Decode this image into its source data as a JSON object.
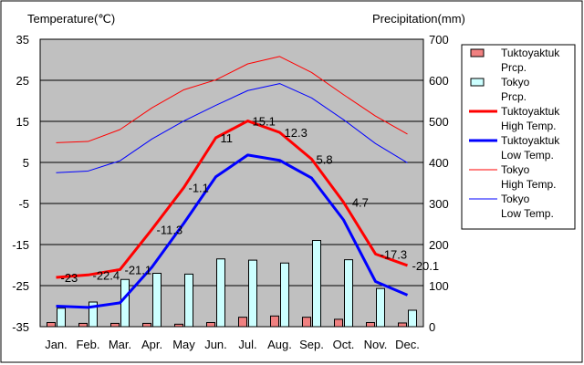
{
  "chart_data": {
    "type": "bar+line",
    "left_axis_label": "Temperature(℃)",
    "right_axis_label": "Precipitation(mm)",
    "categories": [
      "Jan.",
      "Feb.",
      "Mar.",
      "Apr.",
      "May",
      "Jun.",
      "Jul.",
      "Aug.",
      "Sep.",
      "Oct.",
      "Nov.",
      "Dec."
    ],
    "left_axis": {
      "min": -35,
      "max": 35,
      "ticks": [
        35,
        25,
        15,
        5,
        -5,
        -15,
        -25,
        -35
      ]
    },
    "right_axis": {
      "min": 0,
      "max": 700,
      "ticks": [
        700,
        600,
        500,
        400,
        300,
        200,
        100,
        0
      ]
    },
    "grid": "horizontal",
    "legend_position": "right",
    "bar_series": [
      {
        "name": "Tuktoyaktuk Prcp.",
        "legend_lines": [
          "Tuktoyaktuk",
          "Prcp."
        ],
        "color": "#f08080",
        "values": [
          10,
          8,
          8,
          8,
          6,
          10,
          23,
          26,
          23,
          18,
          10,
          9
        ]
      },
      {
        "name": "Tokyo Prcp.",
        "legend_lines": [
          "Tokyo",
          "Prcp."
        ],
        "color": "#ccffff",
        "values": [
          45,
          60,
          115,
          130,
          128,
          165,
          162,
          155,
          210,
          163,
          93,
          40
        ]
      }
    ],
    "line_series": [
      {
        "name": "Tuktoyaktuk High Temp.",
        "legend_lines": [
          "Tuktoyaktuk",
          "High Temp."
        ],
        "color": "#ff0000",
        "width": 3,
        "values": [
          -23,
          -22.4,
          -21.1,
          -11.3,
          -1.1,
          11,
          15.1,
          12.3,
          5.8,
          -4.7,
          -17.3,
          -20.1
        ],
        "labels": [
          "-23",
          "-22.4",
          "-21.1",
          "-11.3",
          "-1.1",
          "11",
          "15.1",
          "12.3",
          "5.8",
          "-4.7",
          "-17.3",
          "-20.1"
        ]
      },
      {
        "name": "Tuktoyaktuk Low Temp.",
        "legend_lines": [
          "Tuktoyaktuk",
          "Low Temp."
        ],
        "color": "#0000ff",
        "width": 3,
        "values": [
          -30,
          -30.3,
          -29.2,
          -20.5,
          -9.8,
          1.5,
          6.8,
          5.5,
          1.2,
          -9,
          -24,
          -27.3
        ]
      },
      {
        "name": "Tokyo High Temp.",
        "legend_lines": [
          "Tokyo",
          "High Temp."
        ],
        "color": "#ff0000",
        "width": 1,
        "values": [
          9.8,
          10.1,
          13,
          18.3,
          22.7,
          25.1,
          29,
          30.8,
          26.9,
          21.5,
          16.3,
          11.9
        ]
      },
      {
        "name": "Tokyo Low Temp.",
        "legend_lines": [
          "Tokyo",
          "Low Temp."
        ],
        "color": "#0000ff",
        "width": 1,
        "values": [
          2.5,
          2.9,
          5.4,
          10.7,
          15.1,
          18.9,
          22.5,
          24.2,
          20.7,
          15.4,
          9.6,
          4.9
        ]
      }
    ]
  }
}
